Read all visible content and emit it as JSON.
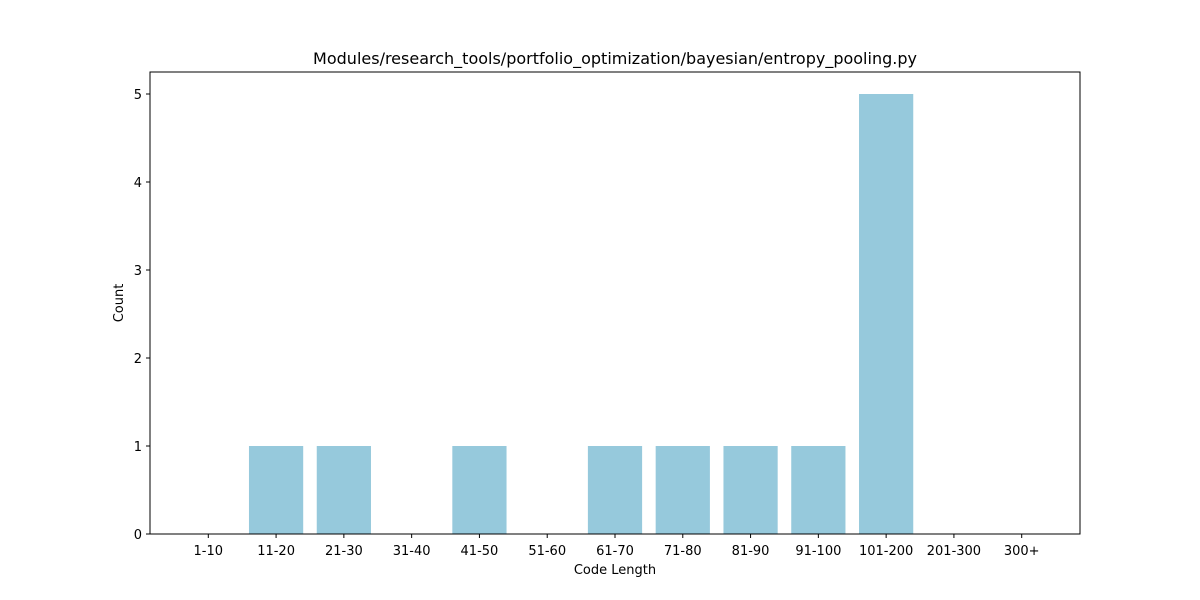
{
  "chart_data": {
    "type": "bar",
    "title": "Modules/research_tools/portfolio_optimization/bayesian/entropy_pooling.py",
    "xlabel": "Code Length",
    "ylabel": "Count",
    "categories": [
      "1-10",
      "11-20",
      "21-30",
      "31-40",
      "41-50",
      "51-60",
      "61-70",
      "71-80",
      "81-90",
      "91-100",
      "101-200",
      "201-300",
      "300+"
    ],
    "values": [
      0,
      1,
      1,
      0,
      1,
      0,
      1,
      1,
      1,
      1,
      5,
      0,
      0
    ],
    "ylim": [
      0,
      5.25
    ],
    "yticks": [
      0,
      1,
      2,
      3,
      4,
      5
    ],
    "bar_color": "#96c9dc",
    "grid": false,
    "legend": "none"
  }
}
